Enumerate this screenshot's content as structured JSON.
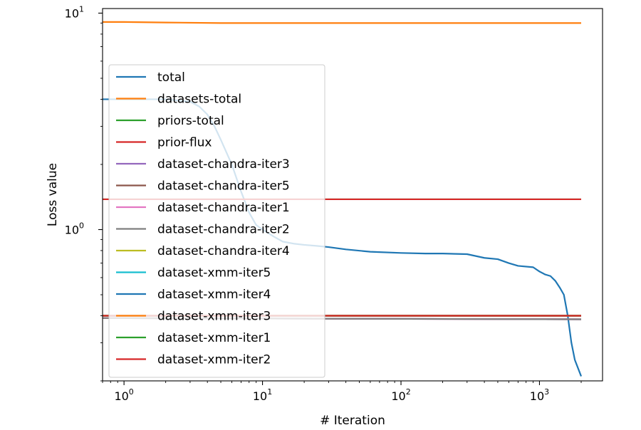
{
  "chart_data": {
    "type": "line",
    "title": "",
    "xlabel": "# Iteration",
    "ylabel": "Loss value",
    "xscale": "log",
    "yscale": "log",
    "xlim": [
      0.7,
      2000
    ],
    "ylim": [
      0.2,
      10.5
    ],
    "grid": false,
    "legend_position": "center-left",
    "x_ticks": [
      {
        "value": 1,
        "base": "10",
        "exp": "0"
      },
      {
        "value": 10,
        "base": "10",
        "exp": "1"
      },
      {
        "value": 100,
        "base": "10",
        "exp": "2"
      },
      {
        "value": 1000,
        "base": "10",
        "exp": "3"
      }
    ],
    "y_ticks": [
      {
        "value": 1,
        "base": "10",
        "exp": "0"
      },
      {
        "value": 10,
        "base": "10",
        "exp": "1"
      }
    ],
    "series": [
      {
        "name": "total",
        "color": "#1f77b4",
        "x": [
          0.7,
          1,
          2,
          3,
          3.5,
          4,
          4.5,
          5,
          6,
          7,
          8,
          9,
          10,
          12,
          14,
          17,
          20,
          25,
          30,
          40,
          60,
          100,
          150,
          200,
          300,
          400,
          500,
          600,
          700,
          900,
          1000,
          1100,
          1200,
          1300,
          1400,
          1500,
          1600,
          1700,
          1800,
          2000
        ],
        "y": [
          4.0,
          4.0,
          4.0,
          3.9,
          3.7,
          3.4,
          3.0,
          2.6,
          2.0,
          1.5,
          1.2,
          1.05,
          1.0,
          0.93,
          0.88,
          0.86,
          0.85,
          0.84,
          0.83,
          0.81,
          0.79,
          0.78,
          0.775,
          0.775,
          0.77,
          0.74,
          0.73,
          0.7,
          0.68,
          0.67,
          0.64,
          0.62,
          0.61,
          0.58,
          0.54,
          0.5,
          0.4,
          0.3,
          0.25,
          0.21
        ]
      },
      {
        "name": "datasets-total",
        "color": "#ff7f0e",
        "x": [
          0.7,
          1,
          2,
          5,
          10,
          100,
          1000,
          2000
        ],
        "y": [
          9.1,
          9.1,
          9.05,
          9.0,
          9.0,
          9.0,
          9.0,
          9.0
        ]
      },
      {
        "name": "priors-total",
        "color": "#2ca02c",
        "x": [
          0.7,
          2000
        ],
        "y": [
          1.38,
          1.38
        ]
      },
      {
        "name": "prior-flux",
        "color": "#d62728",
        "x": [
          0.7,
          2000
        ],
        "y": [
          1.38,
          1.38
        ]
      },
      {
        "name": "dataset-chandra-iter3",
        "color": "#9467bd",
        "x": [
          0.7,
          2000
        ],
        "y": [
          0.39,
          0.385
        ]
      },
      {
        "name": "dataset-chandra-iter5",
        "color": "#8c564b",
        "x": [
          0.7,
          2000
        ],
        "y": [
          0.39,
          0.385
        ]
      },
      {
        "name": "dataset-chandra-iter1",
        "color": "#e377c2",
        "x": [
          0.7,
          2000
        ],
        "y": [
          0.39,
          0.385
        ]
      },
      {
        "name": "dataset-chandra-iter2",
        "color": "#7f7f7f",
        "x": [
          0.7,
          2000
        ],
        "y": [
          0.39,
          0.385
        ]
      },
      {
        "name": "dataset-chandra-iter4",
        "color": "#bcbd22",
        "x": [
          0.7,
          2000
        ],
        "y": [
          0.4,
          0.4
        ]
      },
      {
        "name": "dataset-xmm-iter5",
        "color": "#17becf",
        "x": [
          0.7,
          2000
        ],
        "y": [
          0.4,
          0.4
        ]
      },
      {
        "name": "dataset-xmm-iter4",
        "color": "#1f77b4",
        "x": [
          0.7,
          2000
        ],
        "y": [
          0.4,
          0.4
        ]
      },
      {
        "name": "dataset-xmm-iter3",
        "color": "#ff7f0e",
        "x": [
          0.7,
          2000
        ],
        "y": [
          0.4,
          0.4
        ]
      },
      {
        "name": "dataset-xmm-iter1",
        "color": "#2ca02c",
        "x": [
          0.7,
          2000
        ],
        "y": [
          0.4,
          0.4
        ]
      },
      {
        "name": "dataset-xmm-iter2",
        "color": "#d62728",
        "x": [
          0.7,
          2000
        ],
        "y": [
          0.4,
          0.4
        ]
      }
    ]
  }
}
